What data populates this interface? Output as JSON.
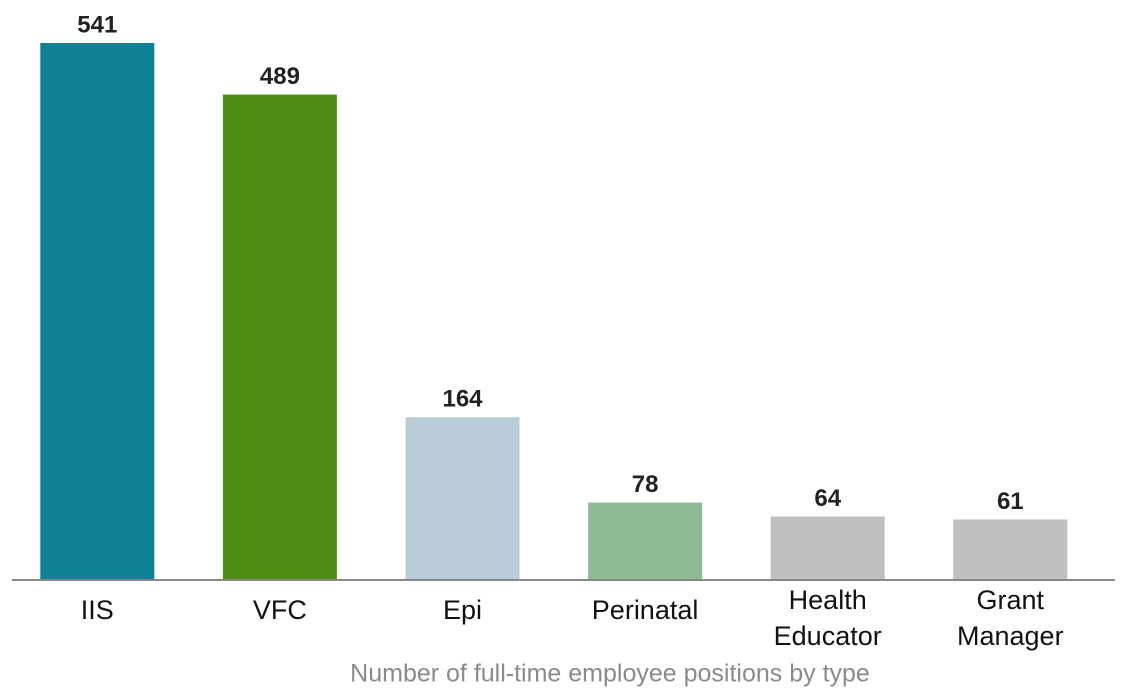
{
  "chart_data": {
    "type": "bar",
    "title": "Number of full-time employee positions by type",
    "categories": [
      "IIS",
      "VFC",
      "Epi",
      "Perinatal",
      "Health Educator",
      "Grant Manager"
    ],
    "values": [
      541,
      489,
      164,
      78,
      64,
      61
    ],
    "colors": [
      "#0e8294",
      "#4d8c14",
      "#b9ccd8",
      "#8fba95",
      "#bfbfbf",
      "#bfbfbf"
    ]
  }
}
